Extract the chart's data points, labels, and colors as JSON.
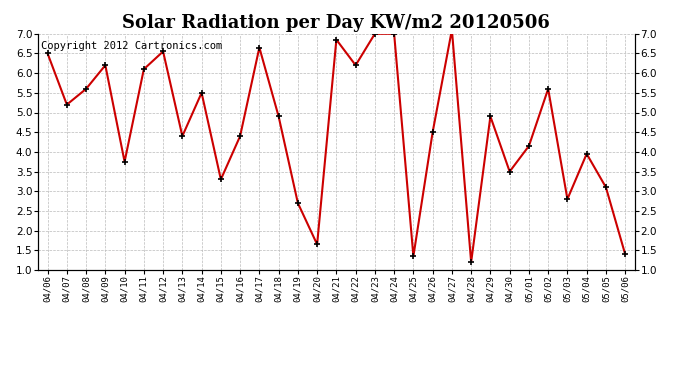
{
  "title": "Solar Radiation per Day KW/m2 20120506",
  "copyright": "Copyright 2012 Cartronics.com",
  "labels": [
    "04/06",
    "04/07",
    "04/08",
    "04/09",
    "04/10",
    "04/11",
    "04/12",
    "04/13",
    "04/14",
    "04/15",
    "04/16",
    "04/17",
    "04/18",
    "04/19",
    "04/20",
    "04/21",
    "04/22",
    "04/23",
    "04/24",
    "04/25",
    "04/26",
    "04/27",
    "04/28",
    "04/29",
    "04/30",
    "05/01",
    "05/02",
    "05/03",
    "05/04",
    "05/05",
    "05/06"
  ],
  "values": [
    6.5,
    5.2,
    5.6,
    6.2,
    3.75,
    6.1,
    6.55,
    4.4,
    5.5,
    3.3,
    4.4,
    6.65,
    4.9,
    2.7,
    1.65,
    6.85,
    6.2,
    7.0,
    7.0,
    1.35,
    4.5,
    7.1,
    1.2,
    4.9,
    3.5,
    4.15,
    5.6,
    2.8,
    3.95,
    3.1,
    1.4
  ],
  "line_color": "#cc0000",
  "marker": "+",
  "marker_color": "#000000",
  "bg_color": "#ffffff",
  "grid_color": "#bbbbbb",
  "ylim": [
    1.0,
    7.0
  ],
  "yticks": [
    1.0,
    1.5,
    2.0,
    2.5,
    3.0,
    3.5,
    4.0,
    4.5,
    5.0,
    5.5,
    6.0,
    6.5,
    7.0
  ],
  "title_fontsize": 13,
  "copyright_fontsize": 7.5,
  "tick_fontsize": 7.5,
  "xtick_fontsize": 6.5
}
